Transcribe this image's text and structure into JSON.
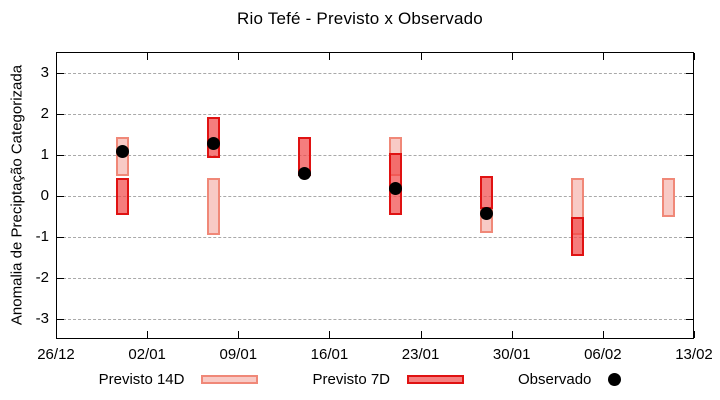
{
  "chart_data": {
    "type": "bar",
    "title": "Rio Tefé - Previsto x Observado",
    "ylabel": "Anomalia de Preciptação Categorizada",
    "x_axis": {
      "tick_labels": [
        "26/12",
        "02/01",
        "09/01",
        "16/01",
        "23/01",
        "30/01",
        "06/02",
        "13/02"
      ],
      "tick_days": [
        0,
        7,
        14,
        21,
        28,
        35,
        42,
        49
      ],
      "range_days": [
        0,
        49
      ]
    },
    "y_axis": {
      "tick_values": [
        3,
        2,
        1,
        0,
        -1,
        -2,
        -3
      ],
      "min": -3.5,
      "max": 3.5,
      "grid": true
    },
    "legend": [
      {
        "label": "Previsto 14D",
        "key": "previsto_14d"
      },
      {
        "label": "Previsto 7D",
        "key": "previsto_7d"
      },
      {
        "label": "Observado",
        "key": "observado"
      }
    ],
    "groups": [
      {
        "day": 5,
        "previsto_14d": [
          0.5,
          1.45
        ],
        "previsto_7d": [
          -0.45,
          0.45
        ],
        "observado": 1.1
      },
      {
        "day": 12,
        "previsto_14d": [
          -0.95,
          0.45
        ],
        "previsto_7d": [
          0.95,
          1.95
        ],
        "observado": 1.3
      },
      {
        "day": 19,
        "previsto_14d": null,
        "previsto_7d": [
          0.5,
          1.45
        ],
        "observado": 0.55
      },
      {
        "day": 26,
        "previsto_14d": [
          0.5,
          1.45
        ],
        "previsto_7d": [
          -0.45,
          1.05
        ],
        "observado": 0.2
      },
      {
        "day": 33,
        "previsto_14d": [
          -0.9,
          -0.3
        ],
        "previsto_7d": [
          -0.3,
          0.5
        ],
        "observado": -0.42
      },
      {
        "day": 40,
        "previsto_14d": [
          -0.95,
          0.45
        ],
        "previsto_7d": [
          -1.45,
          -0.5
        ],
        "observado": null
      },
      {
        "day": 47,
        "previsto_14d": [
          -0.5,
          0.45
        ],
        "previsto_7d": null,
        "observado": null
      }
    ],
    "colors": {
      "previsto_14d_fill": "#f8cac5",
      "previsto_14d_border": "#f08878",
      "previsto_7d_fill": "#f14646",
      "previsto_7d_fill_alpha": 0.7,
      "previsto_7d_border": "#e01212",
      "observado": "#000000",
      "grid": "#a9a9a9",
      "axis": "#000000"
    }
  }
}
